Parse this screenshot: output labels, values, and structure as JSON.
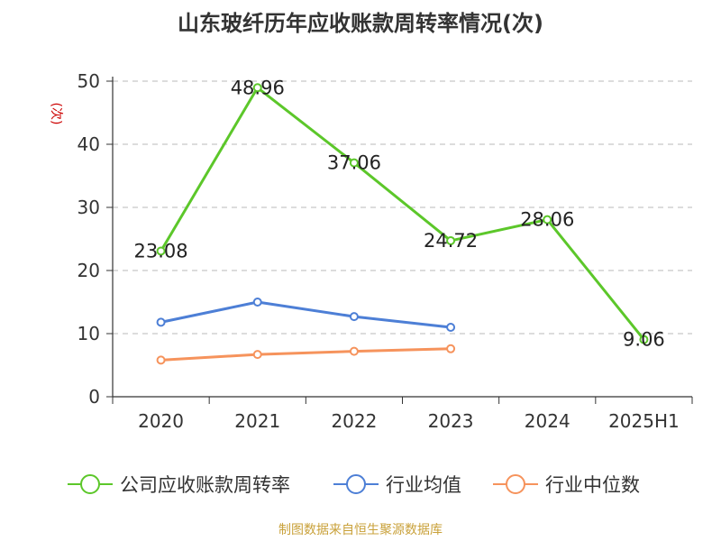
{
  "chart_data": {
    "type": "line",
    "title": "山东玻纤历年应收账款周转率情况(次)",
    "ylabel": "(次)",
    "categories": [
      "2020",
      "2021",
      "2022",
      "2023",
      "2024",
      "2025H1"
    ],
    "ylim": [
      0,
      50
    ],
    "yticks": [
      0,
      10,
      20,
      30,
      40,
      50
    ],
    "grid": true,
    "legend_position": "bottom",
    "series": [
      {
        "name": "公司应收账款周转率",
        "color": "#5cc72a",
        "values": [
          23.08,
          48.96,
          37.06,
          24.72,
          28.06,
          9.06
        ],
        "labels": [
          "23.08",
          "48.96",
          "37.06",
          "24.72",
          "28.06",
          "9.06"
        ]
      },
      {
        "name": "行业均值",
        "color": "#4d7fd6",
        "values": [
          11.8,
          15.0,
          12.7,
          11.0,
          null,
          null
        ]
      },
      {
        "name": "行业中位数",
        "color": "#f6935c",
        "values": [
          5.8,
          6.7,
          7.2,
          7.6,
          null,
          null
        ]
      }
    ]
  },
  "source": "制图数据来自恒生聚源数据库"
}
